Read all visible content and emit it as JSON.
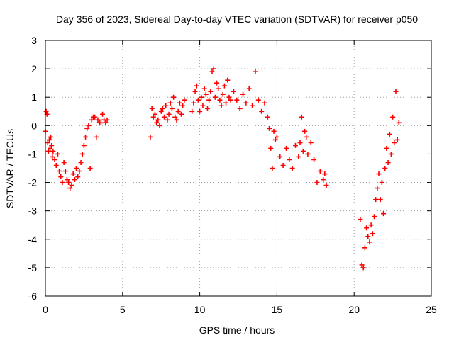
{
  "chart_data": {
    "type": "scatter",
    "title": "Day 356 of 2023, Sidereal Day-to-day VTEC variation (SDTVAR) for receiver p050",
    "xlabel": "GPS time / hours",
    "ylabel": "SDTVAR / TECUs",
    "xlim": [
      0,
      25
    ],
    "ylim": [
      -6,
      3
    ],
    "xticks": [
      0,
      5,
      10,
      15,
      20,
      25
    ],
    "yticks": [
      -6,
      -5,
      -4,
      -3,
      -2,
      -1,
      0,
      1,
      2,
      3
    ],
    "grid": true,
    "marker": "+",
    "color": "#ff0000",
    "series": [
      {
        "name": "SDTVAR",
        "x": [
          0.0,
          0.05,
          0.1,
          0.15,
          0.2,
          0.25,
          0.3,
          0.35,
          0.4,
          0.45,
          0.5,
          0.6,
          0.7,
          0.8,
          0.9,
          1.0,
          1.1,
          1.2,
          1.3,
          1.4,
          1.5,
          1.6,
          1.7,
          1.8,
          1.9,
          2.0,
          2.1,
          2.2,
          2.3,
          2.4,
          2.5,
          2.6,
          2.7,
          2.8,
          2.9,
          3.0,
          3.1,
          3.2,
          3.3,
          3.4,
          3.5,
          3.6,
          3.7,
          3.8,
          3.9,
          4.0,
          6.8,
          6.9,
          7.0,
          7.1,
          7.2,
          7.3,
          7.4,
          7.5,
          7.6,
          7.7,
          7.8,
          7.9,
          8.0,
          8.1,
          8.2,
          8.3,
          8.4,
          8.5,
          8.6,
          8.7,
          8.8,
          8.9,
          9.0,
          9.5,
          9.6,
          9.7,
          9.8,
          9.9,
          10.0,
          10.1,
          10.2,
          10.3,
          10.4,
          10.5,
          10.6,
          10.7,
          10.8,
          10.9,
          11.0,
          11.1,
          11.2,
          11.3,
          11.4,
          11.5,
          11.6,
          11.7,
          11.8,
          11.9,
          12.0,
          12.2,
          12.4,
          12.6,
          12.8,
          13.0,
          13.2,
          13.4,
          13.6,
          13.8,
          14.0,
          14.2,
          14.4,
          14.5,
          14.6,
          14.7,
          14.8,
          14.9,
          15.0,
          15.2,
          15.4,
          15.6,
          15.8,
          16.0,
          16.2,
          16.4,
          16.5,
          16.6,
          16.7,
          16.8,
          16.9,
          17.0,
          17.2,
          17.4,
          17.6,
          17.8,
          18.0,
          18.1,
          18.2,
          20.4,
          20.5,
          20.6,
          20.7,
          20.8,
          20.9,
          21.0,
          21.1,
          21.2,
          21.3,
          21.4,
          21.5,
          21.6,
          21.7,
          21.8,
          21.9,
          22.0,
          22.1,
          22.2,
          22.3,
          22.4,
          22.5,
          22.6,
          22.7,
          22.8,
          22.9
        ],
        "y": [
          -0.2,
          0.5,
          0.4,
          -0.6,
          -0.9,
          -0.5,
          -0.8,
          -0.4,
          -0.7,
          -1.1,
          -0.9,
          -1.2,
          -1.4,
          -1.0,
          -1.6,
          -1.8,
          -2.0,
          -1.3,
          -1.6,
          -1.9,
          -2.0,
          -2.2,
          -2.1,
          -1.7,
          -1.9,
          -1.5,
          -1.8,
          -1.6,
          -1.3,
          -1.0,
          -0.7,
          -0.4,
          -0.1,
          0.0,
          -1.5,
          0.2,
          0.3,
          0.3,
          -0.4,
          0.2,
          0.1,
          0.1,
          0.4,
          0.2,
          0.1,
          0.2,
          -0.4,
          0.6,
          0.3,
          0.4,
          0.1,
          0.2,
          0.0,
          0.5,
          0.6,
          0.3,
          0.7,
          0.2,
          0.4,
          0.8,
          0.6,
          1.0,
          0.3,
          0.2,
          0.5,
          0.8,
          0.4,
          0.7,
          0.9,
          0.5,
          0.8,
          1.2,
          1.4,
          0.9,
          0.5,
          1.0,
          0.7,
          1.3,
          1.1,
          0.6,
          0.9,
          1.2,
          1.9,
          2.0,
          1.0,
          1.5,
          1.3,
          0.9,
          0.7,
          1.1,
          1.4,
          0.8,
          1.6,
          1.0,
          0.9,
          1.2,
          0.9,
          0.6,
          1.1,
          0.8,
          1.3,
          0.7,
          1.9,
          0.9,
          0.5,
          0.8,
          0.3,
          -0.1,
          -0.8,
          -1.5,
          -0.2,
          -0.5,
          -0.4,
          -1.1,
          -1.4,
          -0.8,
          -1.2,
          -1.5,
          -0.7,
          -1.1,
          -0.6,
          0.3,
          -0.9,
          -0.2,
          -0.4,
          -1.0,
          -0.6,
          -1.2,
          -2.0,
          -1.6,
          -1.9,
          -1.7,
          -2.1,
          -3.3,
          -4.9,
          -5.0,
          -4.3,
          -3.6,
          -3.9,
          -4.1,
          -3.5,
          -3.8,
          -3.2,
          -2.6,
          -2.2,
          -1.7,
          -2.6,
          -2.0,
          -3.1,
          -1.5,
          -0.8,
          -1.3,
          -0.3,
          -1.0,
          0.3,
          -0.6,
          1.2,
          -0.5,
          0.1
        ]
      }
    ]
  }
}
